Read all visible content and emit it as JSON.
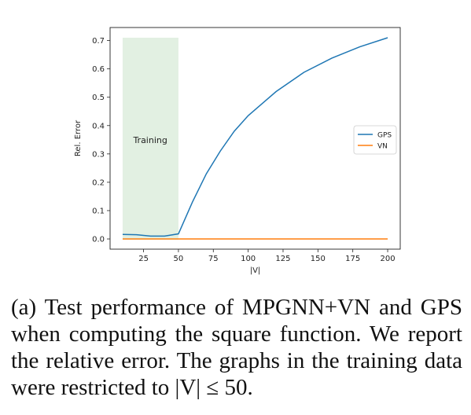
{
  "chart_data": {
    "type": "line",
    "x": [
      10,
      20,
      30,
      40,
      50,
      60,
      70,
      80,
      90,
      100,
      120,
      140,
      160,
      180,
      200
    ],
    "series": [
      {
        "name": "GPS",
        "color": "#1f77b4",
        "values": [
          0.016,
          0.015,
          0.01,
          0.01,
          0.018,
          0.13,
          0.23,
          0.31,
          0.38,
          0.435,
          0.52,
          0.588,
          0.638,
          0.678,
          0.71
        ]
      },
      {
        "name": "VN",
        "color": "#ff7f0e",
        "values": [
          0.0,
          0.0,
          0.0,
          0.0,
          0.0,
          0.0,
          0.0,
          0.0,
          0.0,
          0.0,
          0.0,
          0.0,
          0.0,
          0.0,
          0.0
        ]
      }
    ],
    "xlabel": "|V|",
    "ylabel": "Rel. Error",
    "xticks": [
      25,
      50,
      75,
      100,
      125,
      150,
      175,
      200
    ],
    "yticks": [
      0.0,
      0.1,
      0.2,
      0.3,
      0.4,
      0.5,
      0.6,
      0.7
    ],
    "xlim": [
      1,
      209
    ],
    "ylim": [
      -0.036,
      0.746
    ],
    "training_region": {
      "x_start": 10,
      "x_end": 50,
      "color": "#e2f0e2",
      "label": "Training"
    },
    "legend_position": "center-right",
    "grid": false
  },
  "caption": "(a) Test performance of MPGNN+VN and GPS when computing the square function. We report the relative error. The graphs in the training data were restricted to |V| ≤ 50."
}
